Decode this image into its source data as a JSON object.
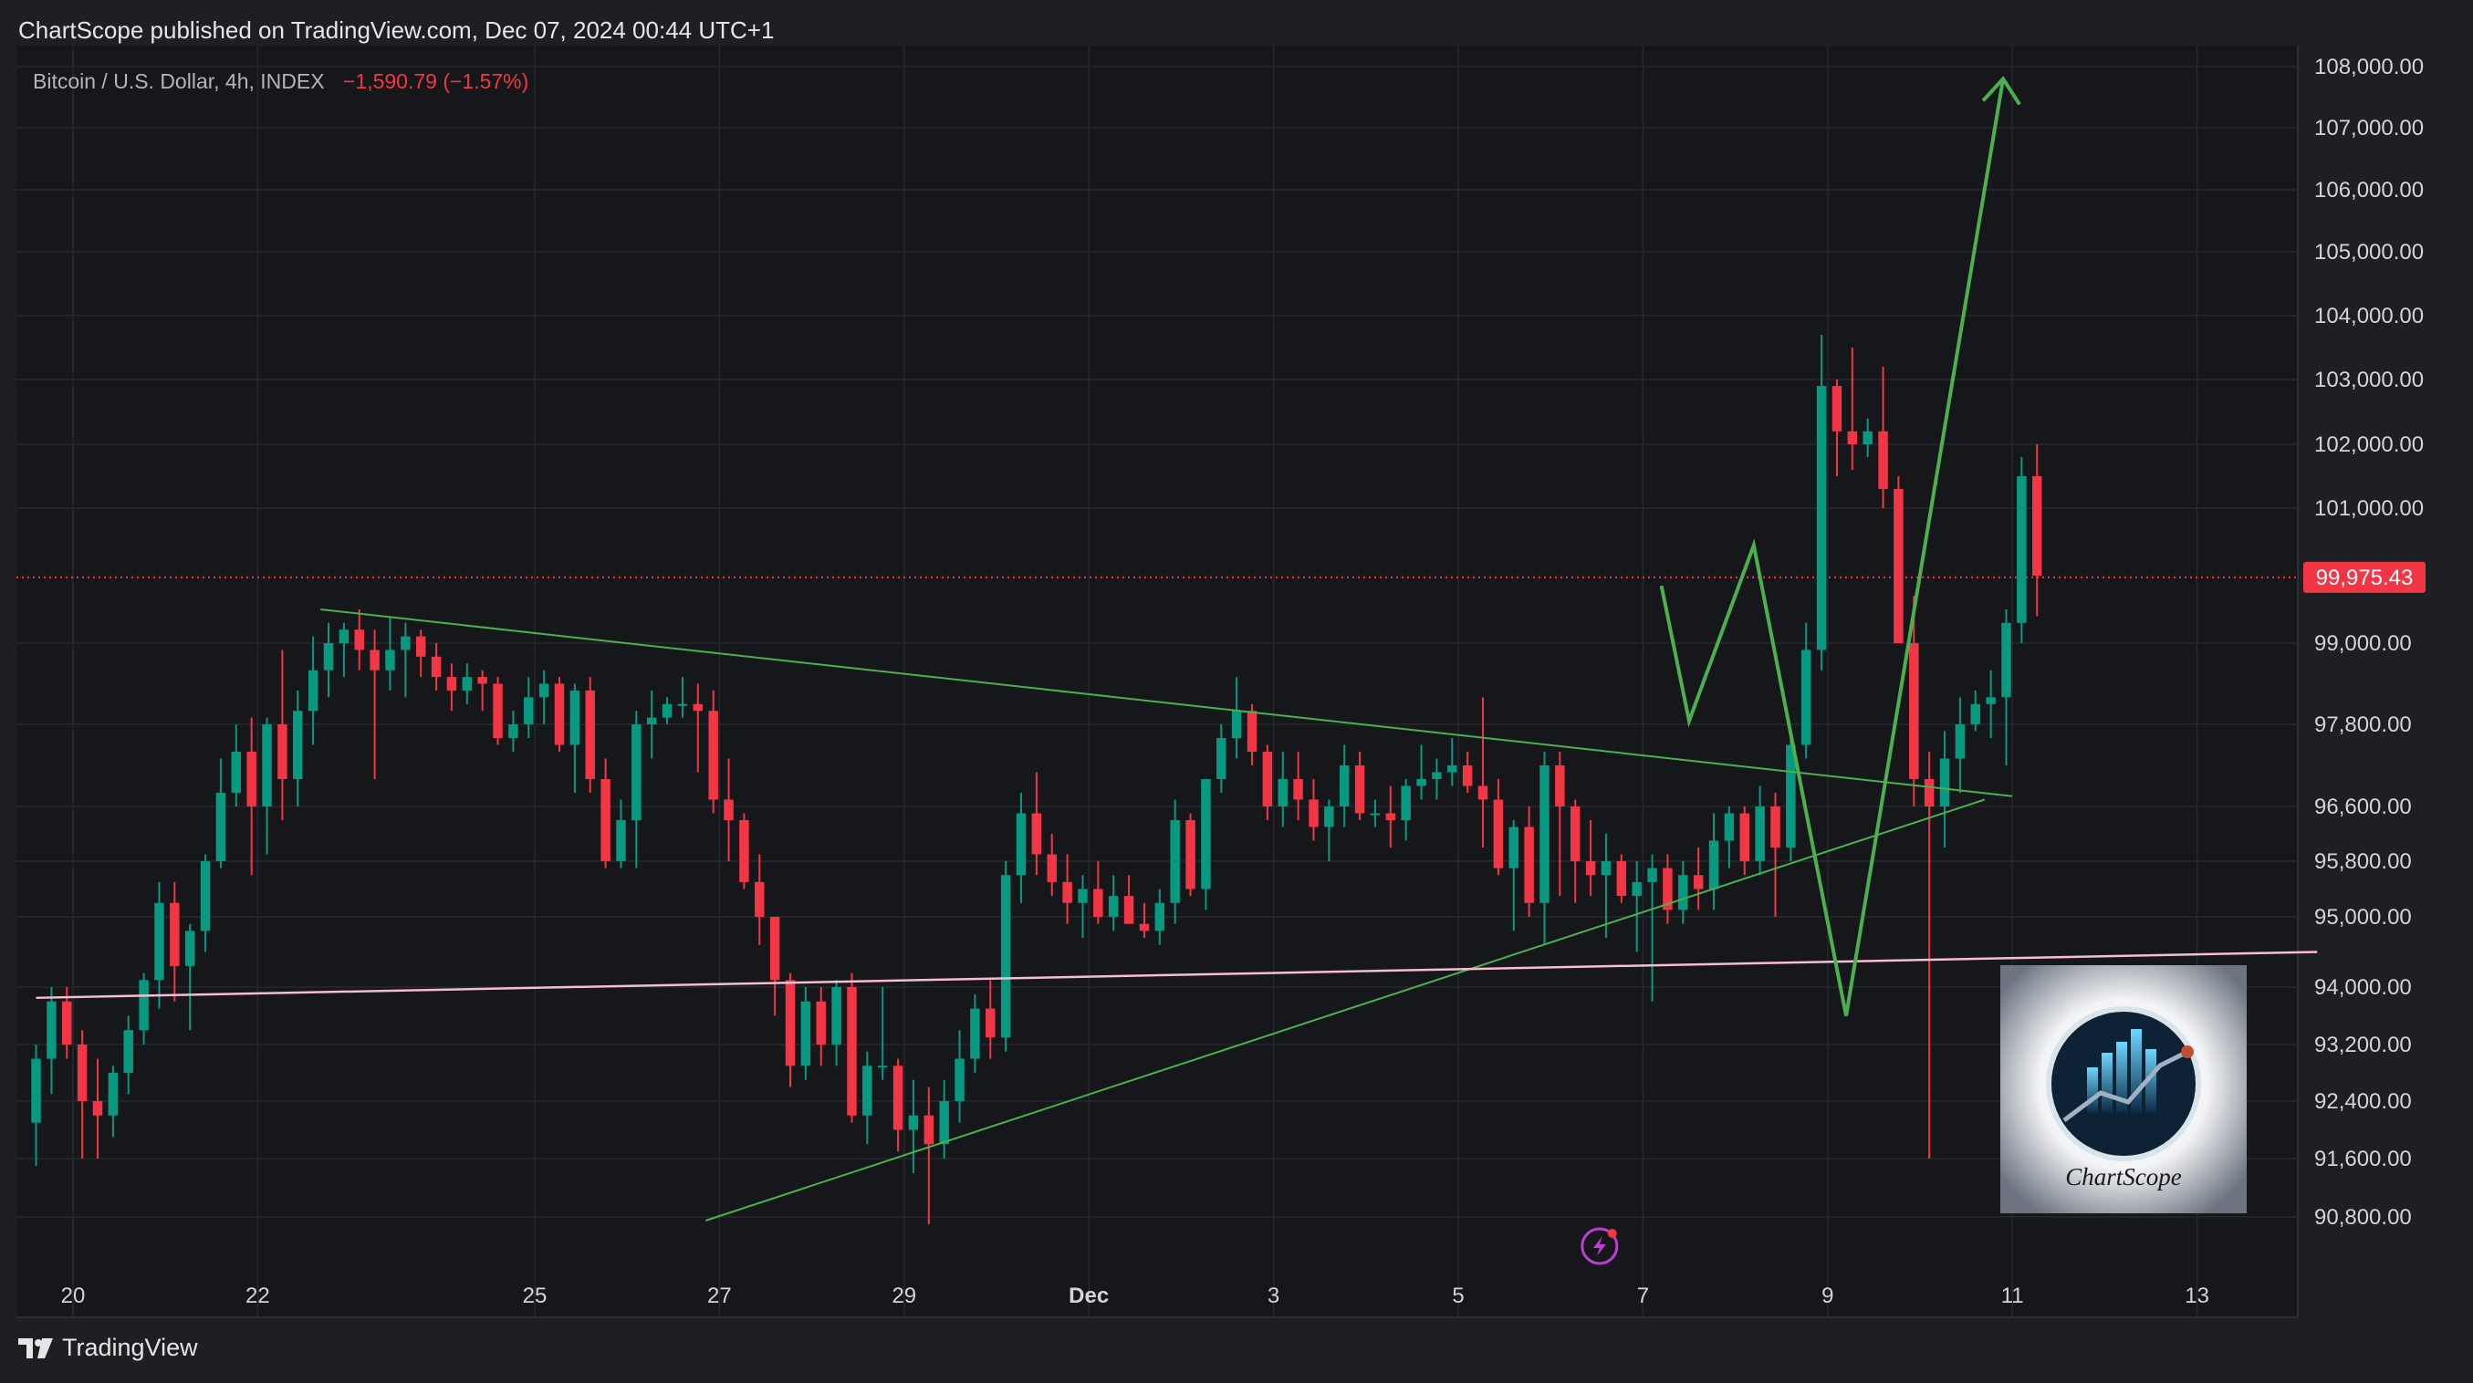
{
  "header": {
    "publish_text": "ChartScope published on TradingView.com, Dec 07, 2024 00:44 UTC+1"
  },
  "symbol": {
    "name": "Bitcoin / U.S. Dollar, 4h, INDEX",
    "change": "−1,590.79 (−1.57%)"
  },
  "footer": {
    "brand": "TradingView"
  },
  "logo": {
    "name": "ChartScope"
  },
  "colors": {
    "up": "#089981",
    "down": "#f23645",
    "background": "#16171b",
    "grid": "#262830",
    "trendline": "#4caf50",
    "support": "#f8bbd0",
    "price_line": "#f23645"
  },
  "chart_data": {
    "type": "candlestick",
    "x_axis": {
      "ticks": [
        {
          "label": "20",
          "day": 20
        },
        {
          "label": "22",
          "day": 22
        },
        {
          "label": "25",
          "day": 25
        },
        {
          "label": "27",
          "day": 27
        },
        {
          "label": "29",
          "day": 29
        },
        {
          "label": "Dec",
          "day": 31
        },
        {
          "label": "3",
          "day": 33
        },
        {
          "label": "5",
          "day": 35
        },
        {
          "label": "7",
          "day": 37
        },
        {
          "label": "9",
          "day": 39
        },
        {
          "label": "11",
          "day": 41
        },
        {
          "label": "13",
          "day": 43
        }
      ]
    },
    "y_axis": {
      "ticks": [
        {
          "label": "108,000.00",
          "value": 108000
        },
        {
          "label": "107,000.00",
          "value": 107000
        },
        {
          "label": "106,000.00",
          "value": 106000
        },
        {
          "label": "105,000.00",
          "value": 105000
        },
        {
          "label": "104,000.00",
          "value": 104000
        },
        {
          "label": "103,000.00",
          "value": 103000
        },
        {
          "label": "102,000.00",
          "value": 102000
        },
        {
          "label": "101,000.00",
          "value": 101000
        },
        {
          "label": "99,000.00",
          "value": 99000
        },
        {
          "label": "97,800.00",
          "value": 97800
        },
        {
          "label": "96,600.00",
          "value": 96600
        },
        {
          "label": "95,800.00",
          "value": 95800
        },
        {
          "label": "95,000.00",
          "value": 95000
        },
        {
          "label": "94,000.00",
          "value": 94000
        },
        {
          "label": "93,200.00",
          "value": 93200
        },
        {
          "label": "92,400.00",
          "value": 92400
        },
        {
          "label": "91,600.00",
          "value": 91600
        },
        {
          "label": "90,800.00",
          "value": 90800
        }
      ]
    },
    "last_price": {
      "label": "99,975.43",
      "value": 99975.43
    },
    "candles_4h": [
      [
        92100,
        93200,
        91500,
        93000
      ],
      [
        93000,
        94000,
        92500,
        93800
      ],
      [
        93800,
        94000,
        93000,
        93200
      ],
      [
        93200,
        93400,
        91600,
        92400
      ],
      [
        92400,
        93000,
        91600,
        92200
      ],
      [
        92200,
        92900,
        91900,
        92800
      ],
      [
        92800,
        93600,
        92500,
        93400
      ],
      [
        93400,
        94200,
        93200,
        94100
      ],
      [
        94100,
        95500,
        93700,
        95200
      ],
      [
        95200,
        95500,
        93800,
        94300
      ],
      [
        94300,
        94900,
        93400,
        94800
      ],
      [
        94800,
        95900,
        94500,
        95800
      ],
      [
        95800,
        97300,
        95700,
        96800
      ],
      [
        96800,
        97800,
        96600,
        97400
      ],
      [
        97400,
        97900,
        95600,
        96600
      ],
      [
        96600,
        97900,
        95900,
        97800
      ],
      [
        97800,
        98900,
        96400,
        97000
      ],
      [
        97000,
        98300,
        96600,
        98000
      ],
      [
        98000,
        99100,
        97500,
        98600
      ],
      [
        98600,
        99300,
        98200,
        99000
      ],
      [
        99000,
        99300,
        98500,
        99200
      ],
      [
        99200,
        99500,
        98600,
        98900
      ],
      [
        98900,
        99200,
        97000,
        98600
      ],
      [
        98600,
        99400,
        98300,
        98900
      ],
      [
        98900,
        99300,
        98200,
        99100
      ],
      [
        99100,
        99200,
        98500,
        98800
      ],
      [
        98800,
        99000,
        98300,
        98500
      ],
      [
        98500,
        98700,
        98000,
        98300
      ],
      [
        98300,
        98700,
        98100,
        98500
      ],
      [
        98500,
        98600,
        98000,
        98400
      ],
      [
        98400,
        98500,
        97500,
        97600
      ],
      [
        97600,
        98000,
        97400,
        97800
      ],
      [
        97800,
        98500,
        97600,
        98200
      ],
      [
        98200,
        98600,
        97800,
        98400
      ],
      [
        98400,
        98500,
        97400,
        97500
      ],
      [
        97500,
        98400,
        96800,
        98300
      ],
      [
        98300,
        98500,
        96800,
        97000
      ],
      [
        97000,
        97300,
        95700,
        95800
      ],
      [
        95800,
        96700,
        95700,
        96400
      ],
      [
        96400,
        98000,
        95700,
        97800
      ],
      [
        97800,
        98300,
        97300,
        97900
      ],
      [
        97900,
        98200,
        97800,
        98100
      ],
      [
        98100,
        98500,
        97900,
        98100
      ],
      [
        98100,
        98400,
        97100,
        98000
      ],
      [
        98000,
        98300,
        96500,
        96700
      ],
      [
        96700,
        97300,
        95800,
        96400
      ],
      [
        96400,
        96500,
        95400,
        95500
      ],
      [
        95500,
        95900,
        94600,
        95000
      ],
      [
        95000,
        95000,
        93600,
        94100
      ],
      [
        94100,
        94200,
        92600,
        92900
      ],
      [
        92900,
        94000,
        92700,
        93800
      ],
      [
        93800,
        94000,
        92900,
        93200
      ],
      [
        93200,
        94100,
        92900,
        94000
      ],
      [
        94000,
        94200,
        92100,
        92200
      ],
      [
        92200,
        93100,
        91800,
        92900
      ],
      [
        92900,
        94000,
        92700,
        92900
      ],
      [
        92900,
        93000,
        91700,
        92000
      ],
      [
        92000,
        92700,
        91400,
        92200
      ],
      [
        92200,
        92600,
        90700,
        91800
      ],
      [
        91800,
        92700,
        91600,
        92400
      ],
      [
        92400,
        93400,
        92100,
        93000
      ],
      [
        93000,
        93900,
        92800,
        93700
      ],
      [
        93700,
        94100,
        93000,
        93300
      ],
      [
        93300,
        95800,
        93100,
        95600
      ],
      [
        95600,
        96800,
        95200,
        96500
      ],
      [
        96500,
        97100,
        95600,
        95900
      ],
      [
        95900,
        96200,
        95300,
        95500
      ],
      [
        95500,
        95900,
        94900,
        95200
      ],
      [
        95200,
        95600,
        94700,
        95400
      ],
      [
        95400,
        95800,
        94900,
        95000
      ],
      [
        95000,
        95600,
        94800,
        95300
      ],
      [
        95300,
        95600,
        94900,
        94900
      ],
      [
        94900,
        95200,
        94700,
        94800
      ],
      [
        94800,
        95400,
        94600,
        95200
      ],
      [
        95200,
        96700,
        94900,
        96400
      ],
      [
        96400,
        96500,
        95300,
        95400
      ],
      [
        95400,
        97000,
        95100,
        97000
      ],
      [
        97000,
        97800,
        96800,
        97600
      ],
      [
        97600,
        98500,
        97300,
        98000
      ],
      [
        98000,
        98100,
        97200,
        97400
      ],
      [
        97400,
        97500,
        96400,
        96600
      ],
      [
        96600,
        97400,
        96300,
        97000
      ],
      [
        97000,
        97400,
        96400,
        96700
      ],
      [
        96700,
        97000,
        96100,
        96300
      ],
      [
        96300,
        96700,
        95800,
        96600
      ],
      [
        96600,
        97500,
        96300,
        97200
      ],
      [
        97200,
        97400,
        96400,
        96500
      ],
      [
        96500,
        96700,
        96300,
        96500
      ],
      [
        96500,
        96900,
        96000,
        96400
      ],
      [
        96400,
        97000,
        96100,
        96900
      ],
      [
        96900,
        97500,
        96700,
        97000
      ],
      [
        97000,
        97300,
        96700,
        97100
      ],
      [
        97100,
        97600,
        96900,
        97200
      ],
      [
        97200,
        97400,
        96800,
        96900
      ],
      [
        96900,
        98200,
        96000,
        96700
      ],
      [
        96700,
        97000,
        95600,
        95700
      ],
      [
        95700,
        96400,
        94800,
        96300
      ],
      [
        96300,
        96600,
        95000,
        95200
      ],
      [
        95200,
        97400,
        94600,
        97200
      ],
      [
        97200,
        97400,
        95300,
        96600
      ],
      [
        96600,
        96700,
        95200,
        95800
      ],
      [
        95800,
        96400,
        95300,
        95600
      ],
      [
        95600,
        96200,
        94700,
        95800
      ],
      [
        95800,
        95900,
        95200,
        95300
      ],
      [
        95300,
        95800,
        94500,
        95500
      ],
      [
        95500,
        95900,
        93800,
        95700
      ],
      [
        95700,
        95900,
        94900,
        95100
      ],
      [
        95100,
        95800,
        94900,
        95600
      ],
      [
        95600,
        96000,
        95100,
        95400
      ],
      [
        95400,
        96500,
        95100,
        96100
      ],
      [
        96100,
        96600,
        95700,
        96500
      ],
      [
        96500,
        96600,
        95600,
        95800
      ],
      [
        95800,
        96900,
        95600,
        96600
      ],
      [
        96600,
        96800,
        95000,
        96000
      ],
      [
        96000,
        97700,
        95800,
        97500
      ],
      [
        97500,
        99300,
        97300,
        98900
      ],
      [
        98900,
        103700,
        98600,
        102900
      ],
      [
        102900,
        103000,
        101500,
        102200
      ],
      [
        102200,
        103500,
        101600,
        102000
      ],
      [
        102000,
        102400,
        101800,
        102200
      ],
      [
        102200,
        103200,
        101000,
        101300
      ],
      [
        101300,
        101500,
        99300,
        99000
      ],
      [
        99000,
        99700,
        96600,
        97000
      ],
      [
        97000,
        97400,
        91600,
        96600
      ],
      [
        96600,
        97700,
        96000,
        97300
      ],
      [
        97300,
        98200,
        96800,
        97800
      ],
      [
        97800,
        98300,
        97700,
        98100
      ],
      [
        98100,
        98600,
        97600,
        98200
      ],
      [
        98200,
        99500,
        97200,
        99300
      ],
      [
        99300,
        101800,
        99000,
        101500
      ],
      [
        101500,
        102000,
        99400,
        100000
      ]
    ],
    "candles_start_day": 19.6,
    "candle_interval_days": 0.16667,
    "annotations": [
      {
        "type": "trendline",
        "name": "descending-resistance",
        "points": [
          [
            22.68,
            99500
          ],
          [
            41.0,
            96750
          ]
        ]
      },
      {
        "type": "trendline",
        "name": "ascending-support",
        "points": [
          [
            26.85,
            90750
          ],
          [
            40.7,
            96700
          ]
        ]
      },
      {
        "type": "trendline",
        "name": "horizontal-support",
        "points": [
          [
            19.6,
            93850
          ],
          [
            44.3,
            94500
          ]
        ]
      },
      {
        "type": "projection-path",
        "name": "forecast",
        "points": [
          [
            37.2,
            99850
          ],
          [
            37.5,
            97850
          ],
          [
            38.2,
            100450
          ],
          [
            39.2,
            93600
          ],
          [
            40.9,
            107800
          ]
        ]
      }
    ]
  }
}
